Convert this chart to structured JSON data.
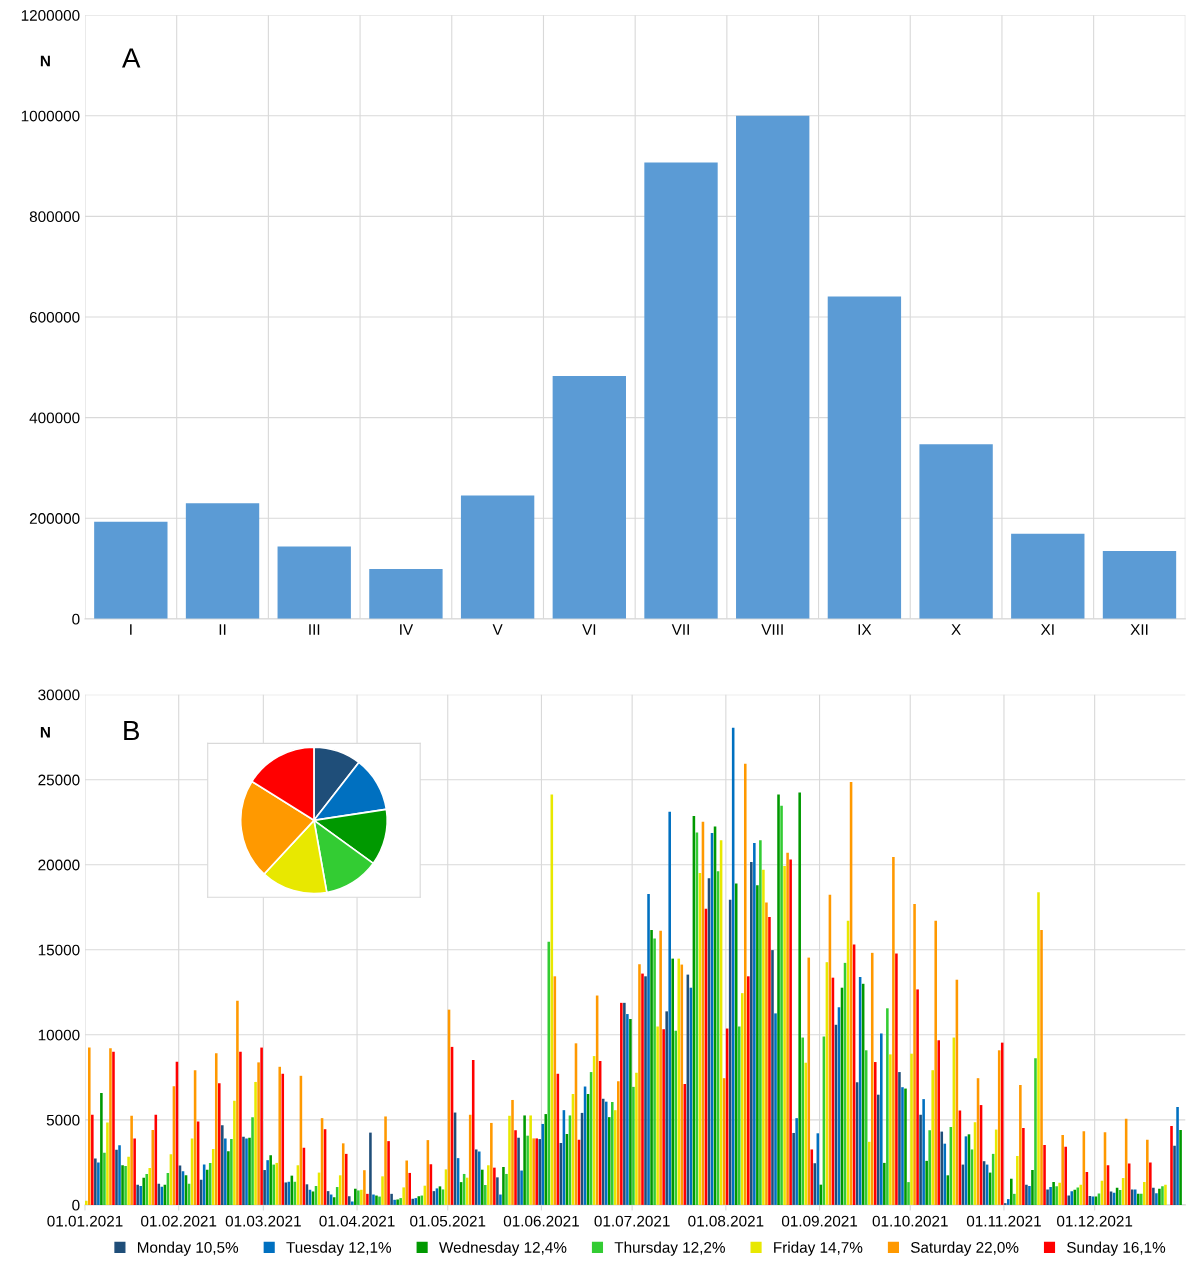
{
  "chart_data": [
    {
      "type": "bar",
      "ylabel": "N",
      "annotations": [
        "A"
      ],
      "categories": [
        "I",
        "II",
        "III",
        "IV",
        "V",
        "VI",
        "VII",
        "VIII",
        "IX",
        "X",
        "XI",
        "XII"
      ],
      "values": [
        193000,
        230000,
        144000,
        99000,
        245000,
        483000,
        907000,
        1000000,
        641000,
        347000,
        169000,
        135000
      ],
      "color": "#5b9bd5",
      "ylim": [
        0,
        1200000
      ],
      "yticks": [
        0,
        200000,
        400000,
        600000,
        800000,
        1000000,
        1200000
      ],
      "grid": true
    },
    {
      "type": "bar",
      "ylabel": "N",
      "annotations": [
        "B"
      ],
      "ylim": [
        0,
        30000
      ],
      "yticks": [
        0,
        5000,
        10000,
        15000,
        20000,
        25000,
        30000
      ],
      "grid": true,
      "legend": "bottom",
      "xlim": [
        "2021-01-01",
        "2021-12-31"
      ],
      "xticks": [
        {
          "value": "2021-01-01",
          "label": "01.01.2021"
        },
        {
          "value": "2021-02-01",
          "label": "01.02.2021"
        },
        {
          "value": "2021-03-01",
          "label": "01.03.2021"
        },
        {
          "value": "2021-04-01",
          "label": "01.04.2021"
        },
        {
          "value": "2021-05-01",
          "label": "01.05.2021"
        },
        {
          "value": "2021-06-01",
          "label": "01.06.2021"
        },
        {
          "value": "2021-07-01",
          "label": "01.07.2021"
        },
        {
          "value": "2021-08-01",
          "label": "01.08.2021"
        },
        {
          "value": "2021-09-01",
          "label": "01.09.2021"
        },
        {
          "value": "2021-10-01",
          "label": "01.10.2021"
        },
        {
          "value": "2021-11-01",
          "label": "01.11.2021"
        },
        {
          "value": "2021-12-01",
          "label": "01.12.2021"
        }
      ],
      "series": [
        {
          "name": "Monday 10,5%",
          "color": "#1f4e79",
          "x": [
            "2021-01-04",
            "2021-01-11",
            "2021-01-18",
            "2021-01-25",
            "2021-02-01",
            "2021-02-08",
            "2021-02-15",
            "2021-02-22",
            "2021-03-01",
            "2021-03-08",
            "2021-03-15",
            "2021-03-22",
            "2021-03-29",
            "2021-04-05",
            "2021-04-12",
            "2021-04-19",
            "2021-04-26",
            "2021-05-03",
            "2021-05-10",
            "2021-05-17",
            "2021-05-24",
            "2021-05-31",
            "2021-06-07",
            "2021-06-14",
            "2021-06-21",
            "2021-06-28",
            "2021-07-05",
            "2021-07-12",
            "2021-07-19",
            "2021-07-26",
            "2021-08-02",
            "2021-08-09",
            "2021-08-16",
            "2021-08-23",
            "2021-08-30",
            "2021-09-06",
            "2021-09-13",
            "2021-09-20",
            "2021-09-27",
            "2021-10-04",
            "2021-10-11",
            "2021-10-18",
            "2021-10-25",
            "2021-11-01",
            "2021-11-08",
            "2021-11-15",
            "2021-11-22",
            "2021-11-29",
            "2021-12-06",
            "2021-12-13",
            "2021-12-20",
            "2021-12-27"
          ],
          "values": [
            2730,
            3240,
            1190,
            1240,
            2310,
            1480,
            4680,
            4010,
            2050,
            1320,
            1210,
            810,
            510,
            4250,
            650,
            360,
            810,
            5430,
            3260,
            1620,
            3950,
            3870,
            3640,
            5410,
            6240,
            11880,
            13440,
            11380,
            13540,
            19210,
            17940,
            20160,
            14980,
            4230,
            2450,
            10590,
            7210,
            6480,
            7810,
            5300,
            4310,
            2370,
            2570,
            100,
            1190,
            910,
            550,
            530,
            790,
            910,
            1010,
            3480
          ]
        },
        {
          "name": "Tuesday 12,1%",
          "color": "#0070c0",
          "x": [
            "2021-01-05",
            "2021-01-12",
            "2021-01-19",
            "2021-01-26",
            "2021-02-02",
            "2021-02-09",
            "2021-02-16",
            "2021-02-23",
            "2021-03-02",
            "2021-03-09",
            "2021-03-16",
            "2021-03-23",
            "2021-03-30",
            "2021-04-06",
            "2021-04-13",
            "2021-04-20",
            "2021-04-27",
            "2021-05-04",
            "2021-05-11",
            "2021-05-18",
            "2021-05-25",
            "2021-06-01",
            "2021-06-08",
            "2021-06-15",
            "2021-06-22",
            "2021-06-29",
            "2021-07-06",
            "2021-07-13",
            "2021-07-20",
            "2021-07-27",
            "2021-08-03",
            "2021-08-10",
            "2021-08-17",
            "2021-08-24",
            "2021-08-31",
            "2021-09-07",
            "2021-09-14",
            "2021-09-21",
            "2021-09-28",
            "2021-10-05",
            "2021-10-12",
            "2021-10-19",
            "2021-10-26",
            "2021-11-02",
            "2021-11-09",
            "2021-11-16",
            "2021-11-23",
            "2021-11-30",
            "2021-12-07",
            "2021-12-14",
            "2021-12-21",
            "2021-12-28"
          ],
          "values": [
            2490,
            3500,
            1110,
            1070,
            1980,
            2370,
            3910,
            3910,
            2630,
            1360,
            890,
            610,
            200,
            610,
            300,
            400,
            970,
            2750,
            3140,
            610,
            2020,
            4760,
            5570,
            6960,
            6070,
            11220,
            18280,
            23120,
            12770,
            21870,
            28060,
            21280,
            11260,
            5100,
            4210,
            11620,
            13400,
            10080,
            6920,
            6220,
            3600,
            4030,
            2370,
            340,
            1110,
            1050,
            810,
            490,
            710,
            910,
            690,
            5750
          ]
        },
        {
          "name": "Wednesday 12,4%",
          "color": "#009900",
          "x": [
            "2021-01-06",
            "2021-01-13",
            "2021-01-20",
            "2021-01-27",
            "2021-02-03",
            "2021-02-10",
            "2021-02-17",
            "2021-02-24",
            "2021-03-03",
            "2021-03-10",
            "2021-03-17",
            "2021-03-24",
            "2021-03-31",
            "2021-04-07",
            "2021-04-14",
            "2021-04-21",
            "2021-04-28",
            "2021-05-05",
            "2021-05-12",
            "2021-05-19",
            "2021-05-26",
            "2021-06-02",
            "2021-06-09",
            "2021-06-16",
            "2021-06-23",
            "2021-06-30",
            "2021-07-07",
            "2021-07-14",
            "2021-07-21",
            "2021-07-28",
            "2021-08-04",
            "2021-08-11",
            "2021-08-18",
            "2021-08-25",
            "2021-09-01",
            "2021-09-08",
            "2021-09-15",
            "2021-09-22",
            "2021-09-29",
            "2021-10-06",
            "2021-10-13",
            "2021-10-20",
            "2021-10-27",
            "2021-11-03",
            "2021-11-10",
            "2021-11-17",
            "2021-11-24",
            "2021-12-01",
            "2021-12-08",
            "2021-12-15",
            "2021-12-22",
            "2021-12-29"
          ],
          "values": [
            6580,
            2330,
            1600,
            1190,
            1740,
            2070,
            3160,
            3950,
            2920,
            1720,
            790,
            450,
            950,
            550,
            320,
            510,
            1090,
            1340,
            2070,
            2230,
            5260,
            5340,
            4170,
            6520,
            5160,
            10930,
            16160,
            14480,
            22860,
            22250,
            18890,
            18790,
            24130,
            24250,
            1190,
            12770,
            13000,
            2470,
            6840,
            2590,
            1740,
            4150,
            1900,
            1540,
            2050,
            1340,
            890,
            490,
            1010,
            650,
            950,
            4410
          ]
        },
        {
          "name": "Thursday 12,2%",
          "color": "#33cc33",
          "x": [
            "2021-01-07",
            "2021-01-14",
            "2021-01-21",
            "2021-01-28",
            "2021-02-04",
            "2021-02-11",
            "2021-02-18",
            "2021-02-25",
            "2021-03-04",
            "2021-03-11",
            "2021-03-18",
            "2021-03-25",
            "2021-04-01",
            "2021-04-08",
            "2021-04-15",
            "2021-04-22",
            "2021-04-29",
            "2021-05-06",
            "2021-05-13",
            "2021-05-20",
            "2021-05-27",
            "2021-06-03",
            "2021-06-10",
            "2021-06-17",
            "2021-06-24",
            "2021-07-01",
            "2021-07-08",
            "2021-07-15",
            "2021-07-22",
            "2021-07-29",
            "2021-08-05",
            "2021-08-12",
            "2021-08-19",
            "2021-08-26",
            "2021-09-02",
            "2021-09-09",
            "2021-09-16",
            "2021-09-23",
            "2021-09-30",
            "2021-10-07",
            "2021-10-14",
            "2021-10-21",
            "2021-10-28",
            "2021-11-04",
            "2021-11-11",
            "2021-11-18",
            "2021-11-25",
            "2021-12-02",
            "2021-12-09",
            "2021-12-16",
            "2021-12-23"
          ],
          "values": [
            3060,
            2290,
            1820,
            1880,
            1240,
            2470,
            3870,
            5160,
            2370,
            1360,
            1110,
            1050,
            850,
            490,
            400,
            550,
            910,
            1820,
            1170,
            1820,
            4070,
            15470,
            5260,
            7810,
            6050,
            6940,
            15670,
            10240,
            21890,
            19620,
            10490,
            21440,
            23470,
            9840,
            9900,
            14230,
            9090,
            11560,
            1340,
            4390,
            4580,
            3260,
            3000,
            650,
            8620,
            1090,
            1030,
            670,
            870,
            650,
            1090
          ]
        },
        {
          "name": "Friday 14,7%",
          "color": "#e8e800",
          "x": [
            "2021-01-01",
            "2021-01-08",
            "2021-01-15",
            "2021-01-22",
            "2021-01-29",
            "2021-02-05",
            "2021-02-12",
            "2021-02-19",
            "2021-02-26",
            "2021-03-05",
            "2021-03-12",
            "2021-03-19",
            "2021-03-26",
            "2021-04-02",
            "2021-04-09",
            "2021-04-16",
            "2021-04-23",
            "2021-04-30",
            "2021-05-07",
            "2021-05-14",
            "2021-05-21",
            "2021-05-28",
            "2021-06-04",
            "2021-06-11",
            "2021-06-18",
            "2021-06-25",
            "2021-07-02",
            "2021-07-09",
            "2021-07-16",
            "2021-07-23",
            "2021-07-30",
            "2021-08-06",
            "2021-08-13",
            "2021-08-20",
            "2021-08-27",
            "2021-09-03",
            "2021-09-10",
            "2021-09-17",
            "2021-09-24",
            "2021-10-01",
            "2021-10-08",
            "2021-10-15",
            "2021-10-22",
            "2021-10-29",
            "2021-11-05",
            "2021-11-12",
            "2021-11-19",
            "2021-11-26",
            "2021-12-03",
            "2021-12-10",
            "2021-12-17",
            "2021-12-24"
          ],
          "values": [
            250,
            4840,
            2830,
            2170,
            2980,
            3910,
            3280,
            6130,
            7230,
            2470,
            2330,
            1900,
            1740,
            890,
            1680,
            1030,
            1130,
            2090,
            1600,
            2330,
            5240,
            5260,
            24130,
            6520,
            8750,
            5570,
            7770,
            10490,
            14480,
            19520,
            21440,
            12450,
            19700,
            19920,
            8360,
            14270,
            16700,
            3710,
            8850,
            8890,
            7920,
            9840,
            4860,
            4430,
            2880,
            18380,
            1300,
            1190,
            1420,
            1580,
            1340,
            1190
          ]
        },
        {
          "name": "Saturday 22,0%",
          "color": "#ff9900",
          "x": [
            "2021-01-02",
            "2021-01-09",
            "2021-01-16",
            "2021-01-23",
            "2021-01-30",
            "2021-02-06",
            "2021-02-13",
            "2021-02-20",
            "2021-02-27",
            "2021-03-06",
            "2021-03-13",
            "2021-03-20",
            "2021-03-27",
            "2021-04-03",
            "2021-04-10",
            "2021-04-17",
            "2021-04-24",
            "2021-05-01",
            "2021-05-08",
            "2021-05-15",
            "2021-05-22",
            "2021-05-29",
            "2021-06-05",
            "2021-06-12",
            "2021-06-19",
            "2021-06-26",
            "2021-07-03",
            "2021-07-10",
            "2021-07-17",
            "2021-07-24",
            "2021-07-31",
            "2021-08-07",
            "2021-08-14",
            "2021-08-21",
            "2021-08-28",
            "2021-09-04",
            "2021-09-11",
            "2021-09-18",
            "2021-09-25",
            "2021-10-02",
            "2021-10-09",
            "2021-10-16",
            "2021-10-23",
            "2021-10-30",
            "2021-11-06",
            "2021-11-13",
            "2021-11-20",
            "2021-11-27",
            "2021-12-04",
            "2021-12-11",
            "2021-12-18",
            "2021-12-25"
          ],
          "values": [
            9250,
            9210,
            5240,
            4410,
            6980,
            7920,
            8910,
            12010,
            8380,
            8120,
            7590,
            5100,
            3620,
            2040,
            5200,
            2610,
            3810,
            11480,
            5300,
            4820,
            6170,
            3910,
            13440,
            9500,
            12310,
            7270,
            14150,
            16120,
            14130,
            22530,
            7450,
            25940,
            17780,
            20710,
            14540,
            18240,
            24860,
            14820,
            20450,
            17690,
            16700,
            13240,
            7450,
            9090,
            7050,
            16160,
            4110,
            4330,
            4270,
            5060,
            3830,
            0
          ]
        },
        {
          "name": "Sunday 16,1%",
          "color": "#ff0000",
          "x": [
            "2021-01-03",
            "2021-01-10",
            "2021-01-17",
            "2021-01-24",
            "2021-01-31",
            "2021-02-07",
            "2021-02-14",
            "2021-02-21",
            "2021-02-28",
            "2021-03-07",
            "2021-03-14",
            "2021-03-21",
            "2021-03-28",
            "2021-04-04",
            "2021-04-11",
            "2021-04-18",
            "2021-04-25",
            "2021-05-02",
            "2021-05-09",
            "2021-05-16",
            "2021-05-23",
            "2021-05-30",
            "2021-06-06",
            "2021-06-13",
            "2021-06-20",
            "2021-06-27",
            "2021-07-04",
            "2021-07-11",
            "2021-07-18",
            "2021-07-25",
            "2021-08-01",
            "2021-08-08",
            "2021-08-15",
            "2021-08-22",
            "2021-08-29",
            "2021-09-05",
            "2021-09-12",
            "2021-09-19",
            "2021-09-26",
            "2021-10-03",
            "2021-10-10",
            "2021-10-17",
            "2021-10-24",
            "2021-10-31",
            "2021-11-07",
            "2021-11-14",
            "2021-11-21",
            "2021-11-28",
            "2021-12-05",
            "2021-12-12",
            "2021-12-19",
            "2021-12-26"
          ],
          "values": [
            5300,
            9010,
            3910,
            5300,
            8420,
            4900,
            7150,
            9010,
            9250,
            7710,
            3360,
            4450,
            3000,
            650,
            3750,
            1880,
            2390,
            9290,
            8520,
            2190,
            4390,
            3910,
            7710,
            3830,
            8460,
            11880,
            13600,
            10330,
            7110,
            17410,
            10370,
            13440,
            16930,
            20310,
            3260,
            13360,
            15310,
            8400,
            14780,
            12670,
            9680,
            5550,
            5870,
            9540,
            4520,
            3520,
            3420,
            1940,
            2330,
            2430,
            2490,
            4640
          ]
        }
      ]
    },
    {
      "type": "pie",
      "categories": [
        null,
        null,
        null,
        null,
        null,
        null,
        null
      ],
      "values": [
        10.5,
        12.1,
        12.4,
        12.2,
        14.7,
        22.0,
        16.1
      ],
      "colors": [
        "#1f4e79",
        "#0070c0",
        "#009900",
        "#33cc33",
        "#e8e800",
        "#ff9900",
        "#ff0000"
      ]
    }
  ]
}
